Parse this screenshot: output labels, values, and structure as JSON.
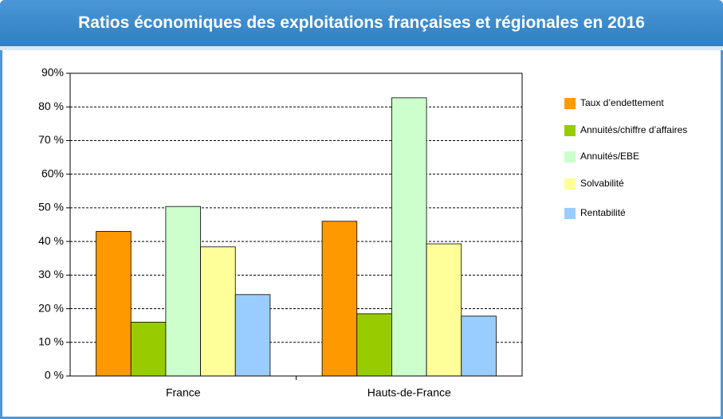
{
  "chart_data": {
    "type": "bar",
    "title": "Ratios économiques des exploitations françaises et régionales en 2016",
    "categories": [
      "France",
      "Hauts-de-France"
    ],
    "series": [
      {
        "name": "Taux d’endettement",
        "color": "#ff9900",
        "values": [
          43,
          46
        ]
      },
      {
        "name": "Annuités/chiffre d’affaires",
        "color": "#99cc00",
        "values": [
          16,
          18.5
        ]
      },
      {
        "name": "Annuités/EBE",
        "color": "#ccffcc",
        "values": [
          50.4,
          82.7
        ]
      },
      {
        "name": "Solvabilité",
        "color": "#ffff99",
        "values": [
          38.4,
          39.3
        ]
      },
      {
        "name": "Rentabilité",
        "color": "#99ccff",
        "values": [
          24.2,
          17.8
        ]
      }
    ],
    "ylim": [
      0,
      90
    ],
    "yticks": [
      {
        "value": 0,
        "label": "0 %"
      },
      {
        "value": 10,
        "label": "10 %"
      },
      {
        "value": 20,
        "label": "20 %"
      },
      {
        "value": 30,
        "label": "30 %"
      },
      {
        "value": 40,
        "label": "40 %"
      },
      {
        "value": 50,
        "label": "50 %"
      },
      {
        "value": 60,
        "label": "60%"
      },
      {
        "value": 70,
        "label": "70 %"
      },
      {
        "value": 80,
        "label": "80 %"
      },
      {
        "value": 90,
        "label": "90%"
      }
    ],
    "grid": true,
    "legend": "right"
  }
}
